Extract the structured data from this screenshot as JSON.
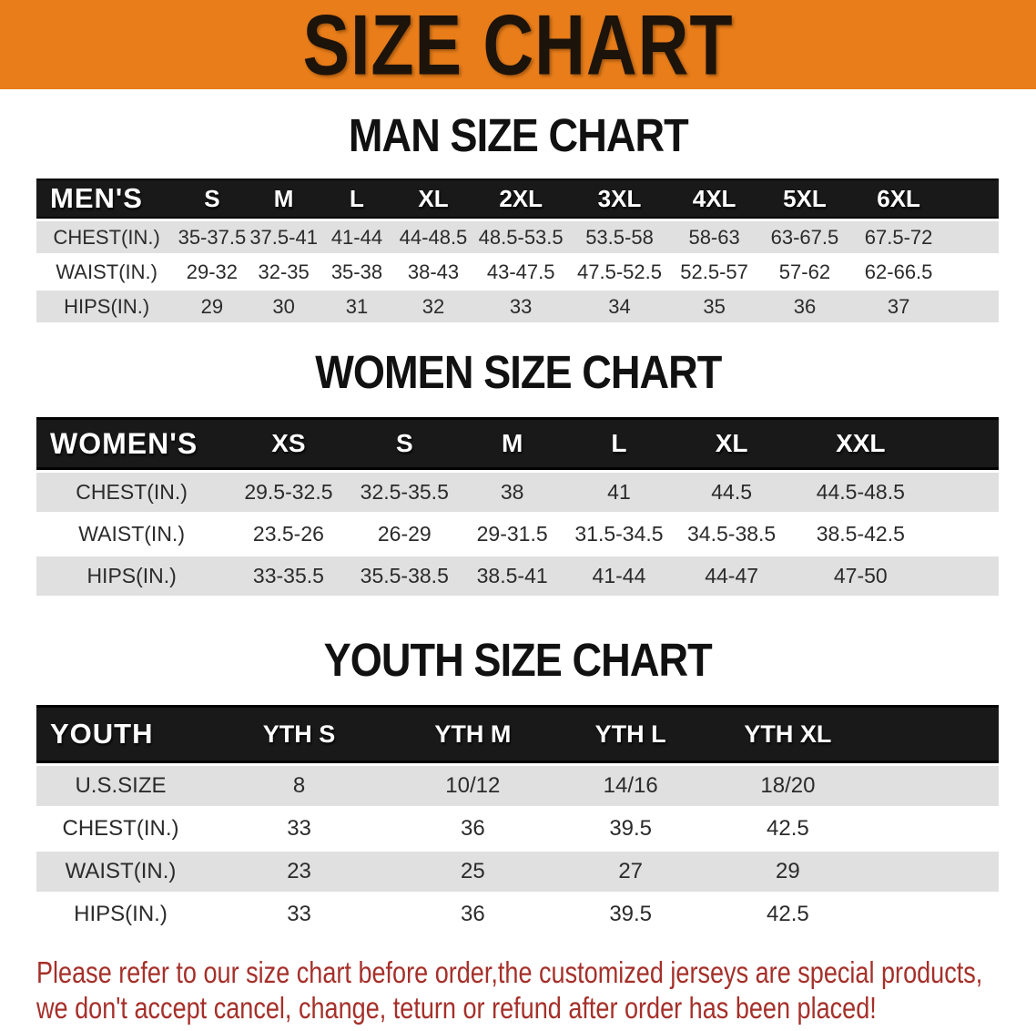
{
  "banner": {
    "title": "SIZE CHART",
    "bg_color": "#e87d1a",
    "text_color": "#1c130b"
  },
  "colors": {
    "table_header_bg": "#191919",
    "table_header_text": "#ffffff",
    "row_shaded": "#e0e0e0",
    "row_plain": "#ffffff",
    "cell_text": "#2b2b2b",
    "disclaimer_text": "#a5302a"
  },
  "sections": [
    {
      "heading": "MAN SIZE CHART",
      "table": {
        "name": "MEN'S",
        "columns": [
          "S",
          "M",
          "L",
          "XL",
          "2XL",
          "3XL",
          "4XL",
          "5XL",
          "6XL"
        ],
        "rows": [
          {
            "label": "CHEST(IN.)",
            "values": [
              "35-37.5",
              "37.5-41",
              "41-44",
              "44-48.5",
              "48.5-53.5",
              "53.5-58",
              "58-63",
              "63-67.5",
              "67.5-72"
            ]
          },
          {
            "label": "WAIST(IN.)",
            "values": [
              "29-32",
              "32-35",
              "35-38",
              "38-43",
              "43-47.5",
              "47.5-52.5",
              "52.5-57",
              "57-62",
              "62-66.5"
            ]
          },
          {
            "label": "HIPS(IN.)",
            "values": [
              "29",
              "30",
              "31",
              "32",
              "33",
              "34",
              "35",
              "36",
              "37"
            ]
          }
        ]
      }
    },
    {
      "heading": "WOMEN SIZE CHART",
      "table": {
        "name": "WOMEN'S",
        "columns": [
          "XS",
          "S",
          "M",
          "L",
          "XL",
          "XXL"
        ],
        "rows": [
          {
            "label": "CHEST(IN.)",
            "values": [
              "29.5-32.5",
              "32.5-35.5",
              "38",
              "41",
              "44.5",
              "44.5-48.5"
            ]
          },
          {
            "label": "WAIST(IN.)",
            "values": [
              "23.5-26",
              "26-29",
              "29-31.5",
              "31.5-34.5",
              "34.5-38.5",
              "38.5-42.5"
            ]
          },
          {
            "label": "HIPS(IN.)",
            "values": [
              "33-35.5",
              "35.5-38.5",
              "38.5-41",
              "41-44",
              "44-47",
              "47-50"
            ]
          }
        ]
      }
    },
    {
      "heading": "YOUTH SIZE CHART",
      "table": {
        "name": "YOUTH",
        "columns": [
          "YTH S",
          "YTH M",
          "YTH L",
          "YTH XL"
        ],
        "rows": [
          {
            "label": "U.S.SIZE",
            "values": [
              "8",
              "10/12",
              "14/16",
              "18/20"
            ]
          },
          {
            "label": "CHEST(IN.)",
            "values": [
              "33",
              "36",
              "39.5",
              "42.5"
            ]
          },
          {
            "label": "WAIST(IN.)",
            "values": [
              "23",
              "25",
              "27",
              "29"
            ]
          },
          {
            "label": "HIPS(IN.)",
            "values": [
              "33",
              "36",
              "39.5",
              "42.5"
            ]
          }
        ]
      }
    }
  ],
  "disclaimer": {
    "lines": [
      "Please refer to our size chart before order,the customized jerseys are special products,",
      "we don't accept cancel, change, teturn or refund after order has been placed!"
    ]
  }
}
